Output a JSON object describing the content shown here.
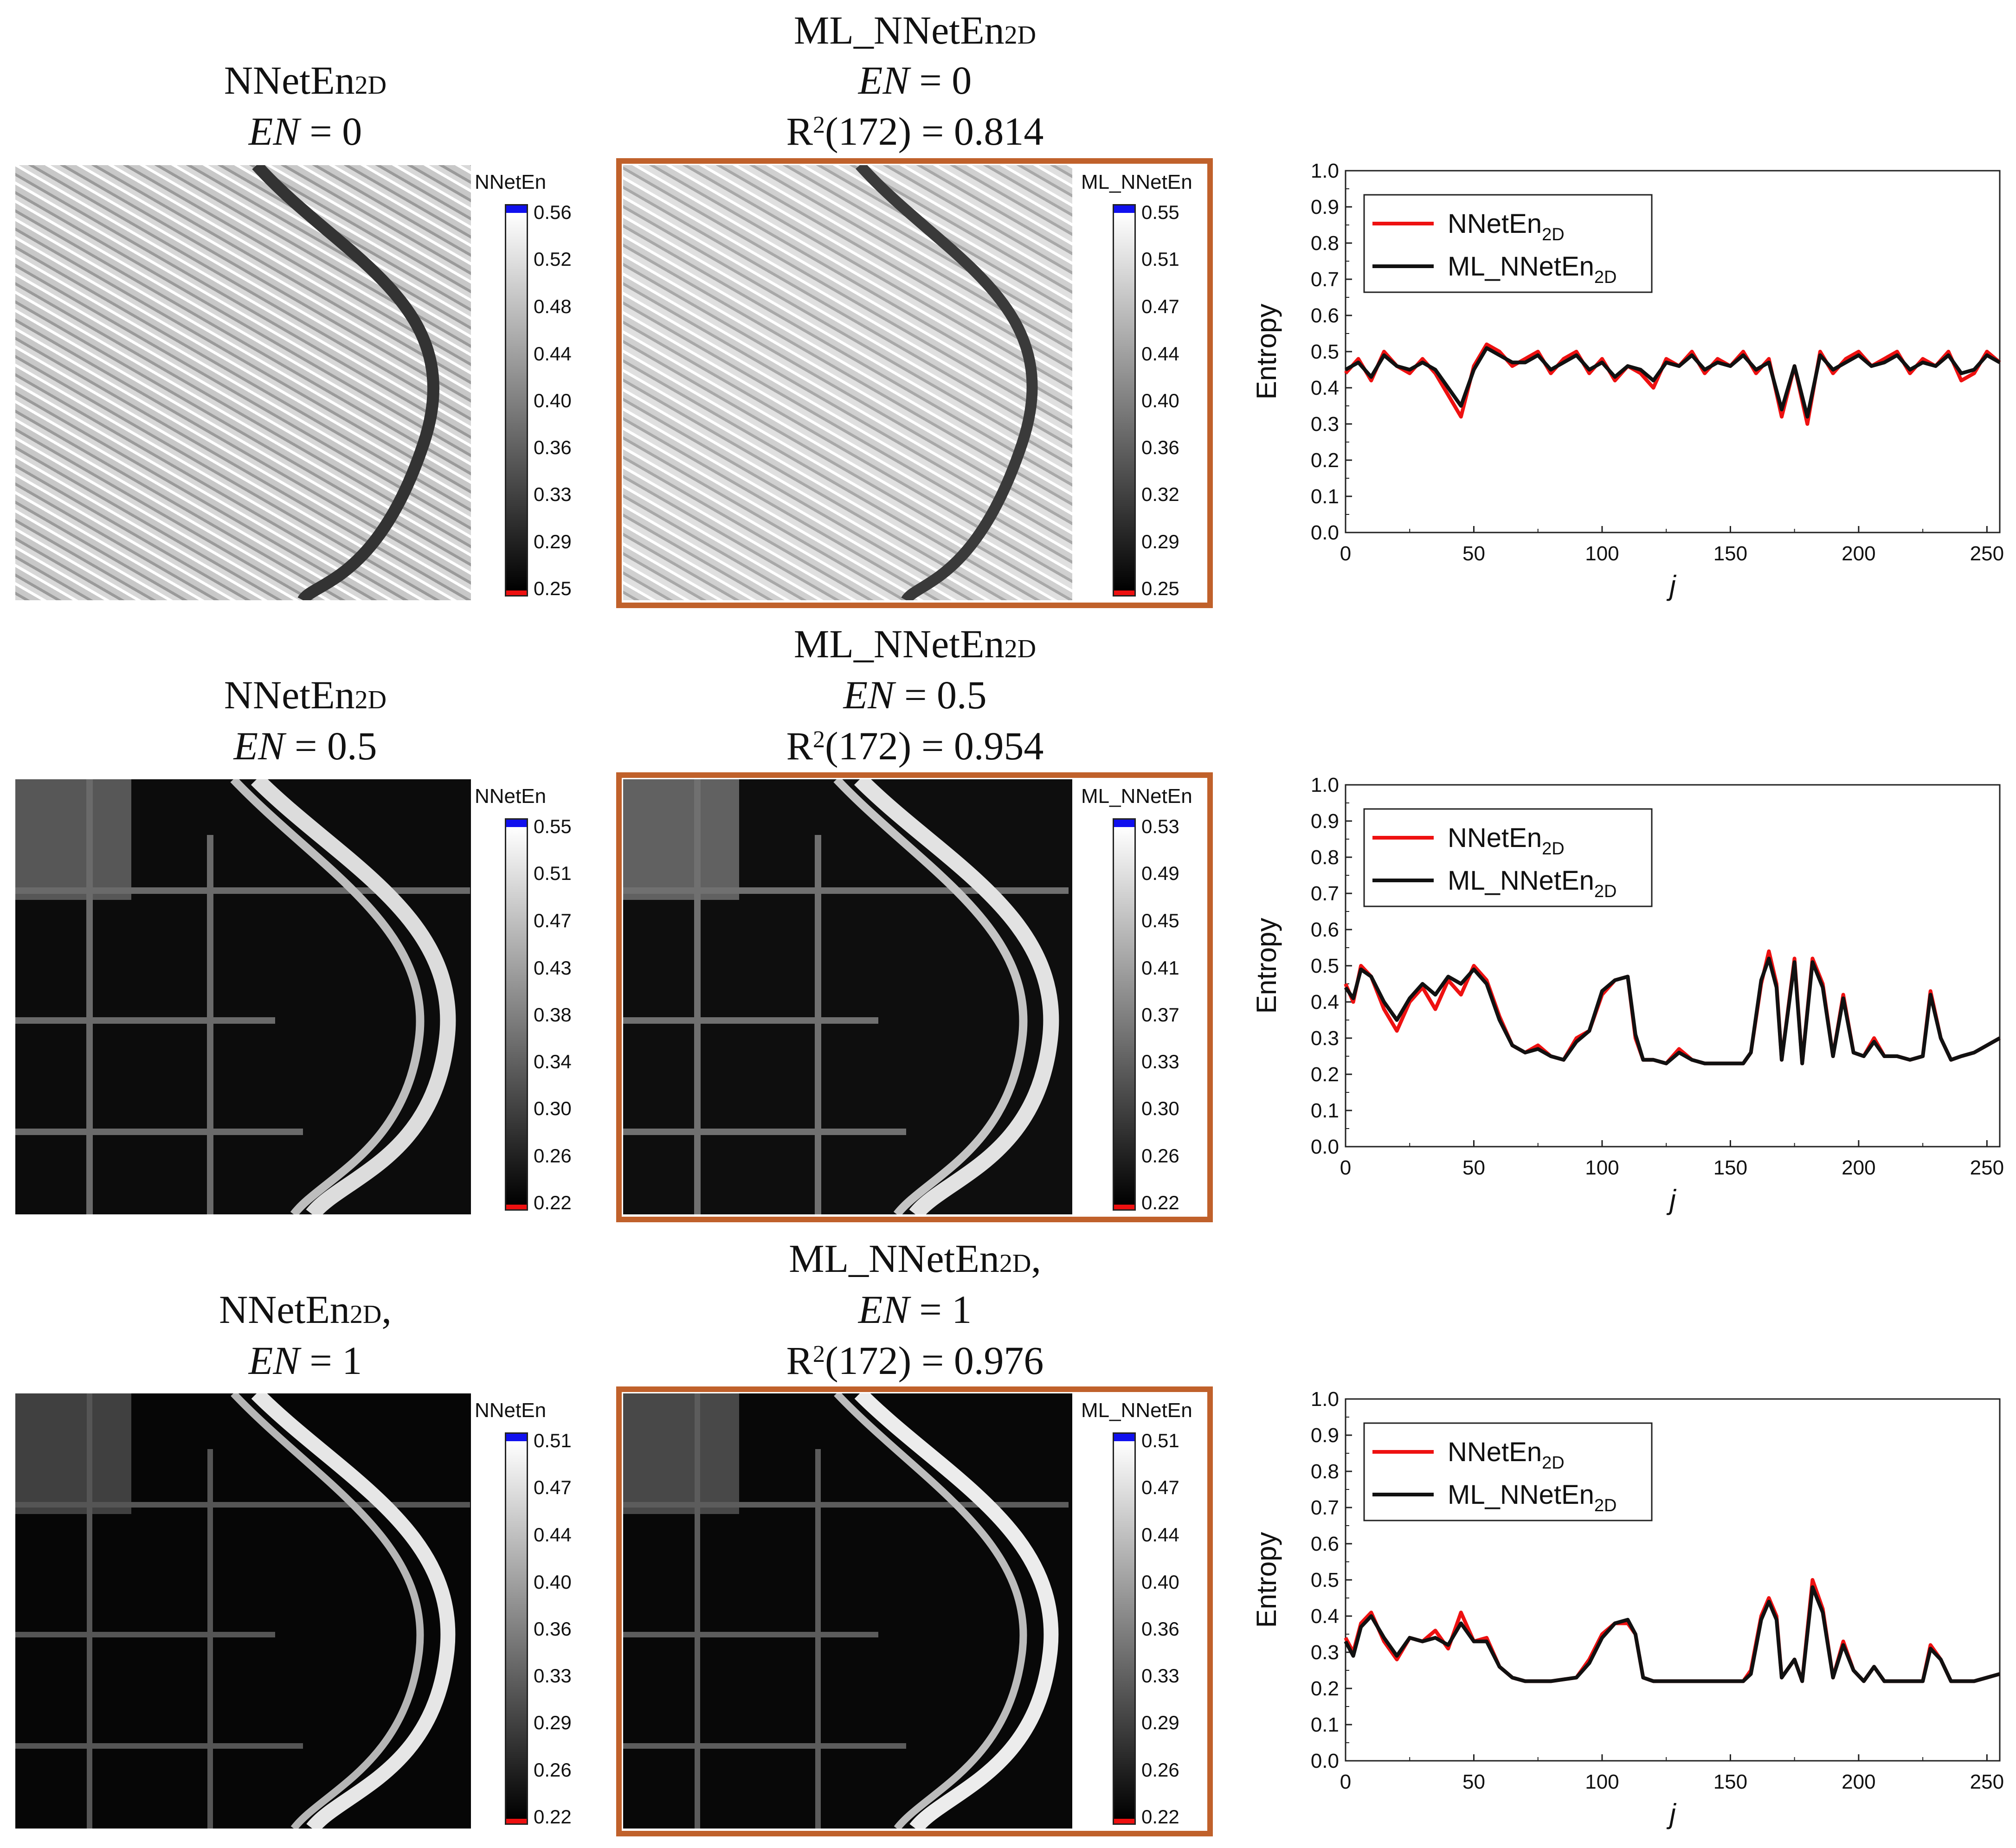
{
  "rows": [
    {
      "left_title": {
        "name": "NNetEn",
        "sub": "2D",
        "suffix": "",
        "en_label": "EN",
        "en_value": "= 0"
      },
      "mid_title": {
        "name": "ML_NNetEn",
        "sub": "2D",
        "suffix": "",
        "en_label": "EN",
        "en_value": "= 0",
        "r2_base": "R",
        "r2_sup": "2",
        "r2_text": "(172) = 0.814"
      },
      "left_colorbar": {
        "title": "NNetEn",
        "ticks": [
          "0.56",
          "0.52",
          "0.48",
          "0.44",
          "0.40",
          "0.36",
          "0.33",
          "0.29",
          "0.25"
        ]
      },
      "mid_colorbar": {
        "title": "ML_NNetEn",
        "ticks": [
          "0.55",
          "0.51",
          "0.47",
          "0.44",
          "0.40",
          "0.36",
          "0.32",
          "0.29",
          "0.25"
        ]
      }
    },
    {
      "left_title": {
        "name": "NNetEn",
        "sub": "2D",
        "suffix": "",
        "en_label": "EN",
        "en_value": "= 0.5"
      },
      "mid_title": {
        "name": "ML_NNetEn",
        "sub": "2D",
        "suffix": "",
        "en_label": "EN",
        "en_value": "= 0.5",
        "r2_base": "R",
        "r2_sup": "2",
        "r2_text": "(172) = 0.954"
      },
      "left_colorbar": {
        "title": "NNetEn",
        "ticks": [
          "0.55",
          "0.51",
          "0.47",
          "0.43",
          "0.38",
          "0.34",
          "0.30",
          "0.26",
          "0.22"
        ]
      },
      "mid_colorbar": {
        "title": "ML_NNetEn",
        "ticks": [
          "0.53",
          "0.49",
          "0.45",
          "0.41",
          "0.37",
          "0.33",
          "0.30",
          "0.26",
          "0.22"
        ]
      }
    },
    {
      "left_title": {
        "name": "NNetEn",
        "sub": "2D",
        "suffix": ",",
        "en_label": "EN",
        "en_value": "= 1"
      },
      "mid_title": {
        "name": "ML_NNetEn",
        "sub": "2D",
        "suffix": ",",
        "en_label": "EN",
        "en_value": "= 1",
        "r2_base": "R",
        "r2_sup": "2",
        "r2_text": "(172) = 0.976"
      },
      "left_colorbar": {
        "title": "NNetEn",
        "ticks": [
          "0.51",
          "0.47",
          "0.44",
          "0.40",
          "0.36",
          "0.33",
          "0.29",
          "0.26",
          "0.22"
        ]
      },
      "mid_colorbar": {
        "title": "ML_NNetEn",
        "ticks": [
          "0.51",
          "0.47",
          "0.44",
          "0.40",
          "0.36",
          "0.33",
          "0.29",
          "0.26",
          "0.22"
        ]
      }
    }
  ],
  "colors": {
    "frame": "#c0612b",
    "series_red": "#ee1111",
    "series_black": "#111111",
    "cbar_top": "#1010ee",
    "cbar_bottom": "#ee1010"
  },
  "chart_data": [
    {
      "type": "line",
      "xlabel": "j",
      "ylabel": "Entropy",
      "xlim": [
        0,
        255
      ],
      "ylim": [
        0,
        1.0
      ],
      "xticks": [
        0,
        50,
        100,
        150,
        200,
        250
      ],
      "yticks": [
        0.0,
        0.1,
        0.2,
        0.3,
        0.4,
        0.5,
        0.6,
        0.7,
        0.8,
        0.9,
        1.0
      ],
      "legend_position": "top-left",
      "series": [
        {
          "name": "NNetEn",
          "sub": "2D",
          "color": "#ee1111",
          "x": [
            0,
            5,
            10,
            15,
            20,
            25,
            30,
            35,
            40,
            45,
            50,
            55,
            60,
            65,
            70,
            75,
            80,
            85,
            90,
            95,
            100,
            105,
            110,
            115,
            120,
            125,
            130,
            135,
            140,
            145,
            150,
            155,
            160,
            165,
            170,
            175,
            180,
            185,
            190,
            195,
            200,
            205,
            210,
            215,
            220,
            225,
            230,
            235,
            240,
            245,
            250,
            255
          ],
          "values": [
            0.44,
            0.48,
            0.42,
            0.5,
            0.46,
            0.44,
            0.48,
            0.44,
            0.38,
            0.32,
            0.46,
            0.52,
            0.5,
            0.46,
            0.48,
            0.5,
            0.44,
            0.48,
            0.5,
            0.44,
            0.48,
            0.42,
            0.46,
            0.44,
            0.4,
            0.48,
            0.46,
            0.5,
            0.44,
            0.48,
            0.46,
            0.5,
            0.44,
            0.48,
            0.32,
            0.46,
            0.3,
            0.5,
            0.44,
            0.48,
            0.5,
            0.46,
            0.48,
            0.5,
            0.44,
            0.48,
            0.46,
            0.5,
            0.42,
            0.44,
            0.5,
            0.47
          ]
        },
        {
          "name": "ML_NNetEn",
          "sub": "2D",
          "color": "#111111",
          "x": [
            0,
            5,
            10,
            15,
            20,
            25,
            30,
            35,
            40,
            45,
            50,
            55,
            60,
            65,
            70,
            75,
            80,
            85,
            90,
            95,
            100,
            105,
            110,
            115,
            120,
            125,
            130,
            135,
            140,
            145,
            150,
            155,
            160,
            165,
            170,
            175,
            180,
            185,
            190,
            195,
            200,
            205,
            210,
            215,
            220,
            225,
            230,
            235,
            240,
            245,
            250,
            255
          ],
          "values": [
            0.45,
            0.47,
            0.43,
            0.49,
            0.46,
            0.45,
            0.47,
            0.45,
            0.4,
            0.35,
            0.45,
            0.51,
            0.49,
            0.47,
            0.47,
            0.49,
            0.45,
            0.47,
            0.49,
            0.45,
            0.47,
            0.43,
            0.46,
            0.45,
            0.42,
            0.47,
            0.46,
            0.49,
            0.45,
            0.47,
            0.46,
            0.49,
            0.45,
            0.47,
            0.34,
            0.46,
            0.32,
            0.49,
            0.45,
            0.47,
            0.49,
            0.46,
            0.47,
            0.49,
            0.45,
            0.47,
            0.46,
            0.49,
            0.44,
            0.45,
            0.49,
            0.47
          ]
        }
      ]
    },
    {
      "type": "line",
      "xlabel": "j",
      "ylabel": "Entropy",
      "xlim": [
        0,
        255
      ],
      "ylim": [
        0,
        1.0
      ],
      "xticks": [
        0,
        50,
        100,
        150,
        200,
        250
      ],
      "yticks": [
        0.0,
        0.1,
        0.2,
        0.3,
        0.4,
        0.5,
        0.6,
        0.7,
        0.8,
        0.9,
        1.0
      ],
      "legend_position": "top-left",
      "series": [
        {
          "name": "NNetEn",
          "sub": "2D",
          "color": "#ee1111",
          "x": [
            0,
            3,
            6,
            10,
            15,
            20,
            25,
            30,
            35,
            40,
            45,
            50,
            55,
            60,
            65,
            70,
            75,
            80,
            85,
            90,
            95,
            100,
            105,
            110,
            113,
            116,
            120,
            125,
            130,
            135,
            140,
            145,
            150,
            155,
            158,
            162,
            165,
            168,
            170,
            175,
            178,
            182,
            186,
            190,
            194,
            198,
            202,
            206,
            210,
            215,
            220,
            225,
            228,
            232,
            236,
            240,
            245,
            250,
            255
          ],
          "values": [
            0.45,
            0.4,
            0.5,
            0.47,
            0.38,
            0.32,
            0.4,
            0.44,
            0.38,
            0.46,
            0.42,
            0.5,
            0.46,
            0.36,
            0.28,
            0.26,
            0.28,
            0.25,
            0.24,
            0.3,
            0.32,
            0.42,
            0.46,
            0.47,
            0.3,
            0.24,
            0.24,
            0.23,
            0.27,
            0.24,
            0.23,
            0.23,
            0.23,
            0.23,
            0.26,
            0.45,
            0.54,
            0.45,
            0.24,
            0.52,
            0.23,
            0.52,
            0.45,
            0.25,
            0.42,
            0.26,
            0.25,
            0.3,
            0.25,
            0.25,
            0.24,
            0.25,
            0.43,
            0.3,
            0.24,
            0.25,
            0.26,
            0.28,
            0.3
          ]
        },
        {
          "name": "ML_NNetEn",
          "sub": "2D",
          "color": "#111111",
          "x": [
            0,
            3,
            6,
            10,
            15,
            20,
            25,
            30,
            35,
            40,
            45,
            50,
            55,
            60,
            65,
            70,
            75,
            80,
            85,
            90,
            95,
            100,
            105,
            110,
            113,
            116,
            120,
            125,
            130,
            135,
            140,
            145,
            150,
            155,
            158,
            162,
            165,
            168,
            170,
            175,
            178,
            182,
            186,
            190,
            194,
            198,
            202,
            206,
            210,
            215,
            220,
            225,
            228,
            232,
            236,
            240,
            245,
            250,
            255
          ],
          "values": [
            0.44,
            0.41,
            0.49,
            0.47,
            0.4,
            0.35,
            0.41,
            0.45,
            0.42,
            0.47,
            0.45,
            0.49,
            0.45,
            0.35,
            0.28,
            0.26,
            0.27,
            0.25,
            0.24,
            0.29,
            0.32,
            0.43,
            0.46,
            0.47,
            0.31,
            0.24,
            0.24,
            0.23,
            0.26,
            0.24,
            0.23,
            0.23,
            0.23,
            0.23,
            0.26,
            0.46,
            0.52,
            0.44,
            0.24,
            0.51,
            0.23,
            0.51,
            0.44,
            0.25,
            0.41,
            0.26,
            0.25,
            0.29,
            0.25,
            0.25,
            0.24,
            0.25,
            0.42,
            0.3,
            0.24,
            0.25,
            0.26,
            0.28,
            0.3
          ]
        }
      ]
    },
    {
      "type": "line",
      "xlabel": "j",
      "ylabel": "Entropy",
      "xlim": [
        0,
        255
      ],
      "ylim": [
        0,
        1.0
      ],
      "xticks": [
        0,
        50,
        100,
        150,
        200,
        250
      ],
      "yticks": [
        0.0,
        0.1,
        0.2,
        0.3,
        0.4,
        0.5,
        0.6,
        0.7,
        0.8,
        0.9,
        1.0
      ],
      "legend_position": "top-left",
      "series": [
        {
          "name": "NNetEn",
          "sub": "2D",
          "color": "#ee1111",
          "x": [
            0,
            3,
            6,
            10,
            15,
            20,
            25,
            30,
            35,
            40,
            45,
            50,
            55,
            60,
            65,
            70,
            80,
            90,
            95,
            100,
            105,
            110,
            113,
            116,
            120,
            130,
            140,
            150,
            155,
            158,
            162,
            165,
            168,
            170,
            175,
            178,
            182,
            186,
            190,
            194,
            198,
            202,
            206,
            210,
            215,
            220,
            225,
            228,
            232,
            236,
            240,
            245,
            250,
            255
          ],
          "values": [
            0.34,
            0.3,
            0.38,
            0.41,
            0.33,
            0.28,
            0.34,
            0.33,
            0.36,
            0.31,
            0.41,
            0.33,
            0.34,
            0.26,
            0.23,
            0.22,
            0.22,
            0.23,
            0.28,
            0.35,
            0.38,
            0.38,
            0.35,
            0.23,
            0.22,
            0.22,
            0.22,
            0.22,
            0.22,
            0.25,
            0.4,
            0.45,
            0.4,
            0.23,
            0.28,
            0.22,
            0.5,
            0.42,
            0.23,
            0.33,
            0.25,
            0.22,
            0.26,
            0.22,
            0.22,
            0.22,
            0.22,
            0.32,
            0.28,
            0.22,
            0.22,
            0.22,
            0.23,
            0.24
          ]
        },
        {
          "name": "ML_NNetEn",
          "sub": "2D",
          "color": "#111111",
          "x": [
            0,
            3,
            6,
            10,
            15,
            20,
            25,
            30,
            35,
            40,
            45,
            50,
            55,
            60,
            65,
            70,
            80,
            90,
            95,
            100,
            105,
            110,
            113,
            116,
            120,
            130,
            140,
            150,
            155,
            158,
            162,
            165,
            168,
            170,
            175,
            178,
            182,
            186,
            190,
            194,
            198,
            202,
            206,
            210,
            215,
            220,
            225,
            228,
            232,
            236,
            240,
            245,
            250,
            255
          ],
          "values": [
            0.33,
            0.29,
            0.37,
            0.4,
            0.34,
            0.29,
            0.34,
            0.33,
            0.34,
            0.32,
            0.38,
            0.33,
            0.33,
            0.26,
            0.23,
            0.22,
            0.22,
            0.23,
            0.27,
            0.34,
            0.38,
            0.39,
            0.35,
            0.23,
            0.22,
            0.22,
            0.22,
            0.22,
            0.22,
            0.24,
            0.39,
            0.44,
            0.39,
            0.23,
            0.28,
            0.22,
            0.48,
            0.41,
            0.23,
            0.32,
            0.25,
            0.22,
            0.26,
            0.22,
            0.22,
            0.22,
            0.22,
            0.31,
            0.28,
            0.22,
            0.22,
            0.22,
            0.23,
            0.24
          ]
        }
      ]
    }
  ]
}
